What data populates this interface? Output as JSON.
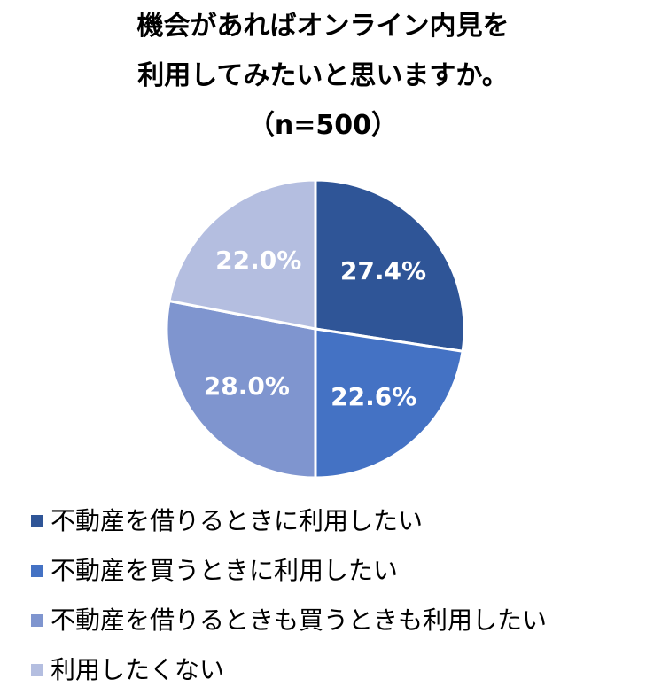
{
  "title": {
    "line1": "機会があればオンライン内見を",
    "line2": "利用してみたいと思いますか。",
    "line3": "（n=500）"
  },
  "chart_data": {
    "type": "pie",
    "title": "機会があればオンライン内見を利用してみたいと思いますか。（n=500）",
    "categories": [
      "不動産を借りるときに利用したい",
      "不動産を買うときに利用したい",
      "不動産を借りるときも買うときも利用したい",
      "利用したくない"
    ],
    "values": [
      27.4,
      22.6,
      28.0,
      22.0
    ],
    "labels": [
      "27.4%",
      "22.6%",
      "28.0%",
      "22.0%"
    ],
    "colors": [
      "#2F5597",
      "#4472C4",
      "#7F95CF",
      "#B4BEE0"
    ],
    "label_color": "#ffffff",
    "legend_position": "bottom-left"
  }
}
